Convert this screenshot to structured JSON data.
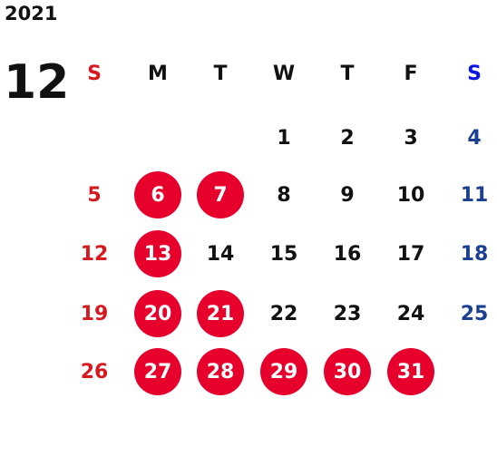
{
  "year": "2021",
  "month": "12",
  "weekdays": [
    "S",
    "M",
    "T",
    "W",
    "T",
    "F",
    "S"
  ],
  "weeks": [
    [
      "",
      "",
      "",
      "1",
      "2",
      "3",
      "4"
    ],
    [
      "5",
      "6",
      "7",
      "8",
      "9",
      "10",
      "11"
    ],
    [
      "12",
      "13",
      "14",
      "15",
      "16",
      "17",
      "18"
    ],
    [
      "19",
      "20",
      "21",
      "22",
      "23",
      "24",
      "25"
    ],
    [
      "26",
      "27",
      "28",
      "29",
      "30",
      "31",
      ""
    ]
  ],
  "highlighted_days": [
    "6",
    "7",
    "13",
    "20",
    "21",
    "27",
    "28",
    "29",
    "30",
    "31"
  ],
  "colors": {
    "sunday": "#d7191f",
    "saturday": "#1b3f91",
    "saturday_header": "#0a14e6",
    "highlight": "#e8002d",
    "text": "#111111"
  }
}
